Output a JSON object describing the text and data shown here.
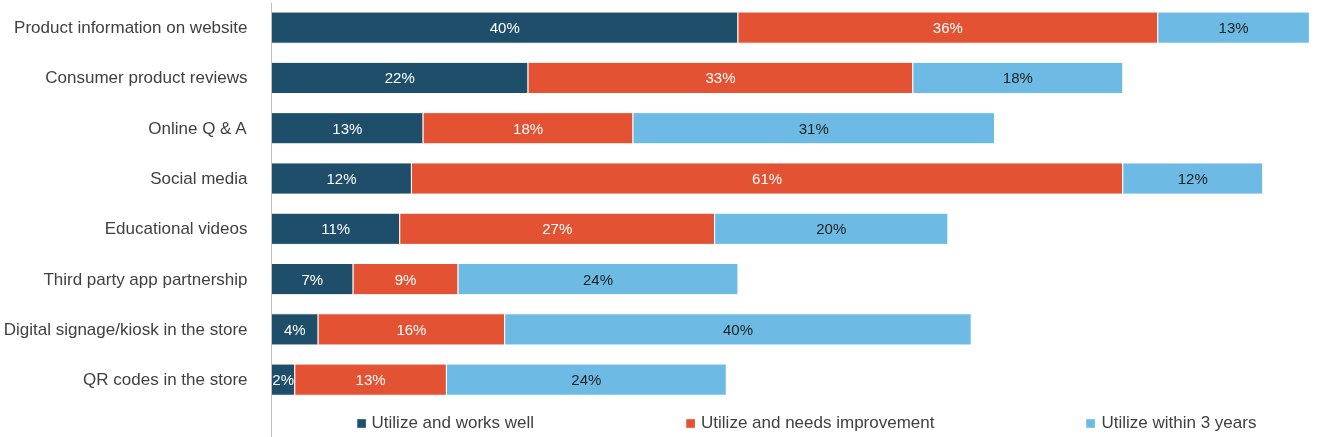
{
  "chart_data": {
    "type": "bar",
    "orientation": "horizontal",
    "stacked": true,
    "legend": "bottom",
    "grid": false,
    "categories": [
      "Product information on website",
      "Consumer product reviews",
      "Online Q & A",
      "Social media",
      "Educational videos",
      "Third party app partnership",
      "Digital signage/kiosk in the store",
      "QR codes in the store"
    ],
    "series": [
      {
        "name": "Utilize and works well",
        "color": "#1f4e6b",
        "values": [
          40,
          22,
          13,
          12,
          11,
          7,
          4,
          2
        ],
        "value_labels": [
          "40%",
          "22%",
          "13%",
          "12%",
          "11%",
          "7%",
          "4%",
          "2%"
        ]
      },
      {
        "name": "Utilize and needs improvement",
        "color": "#e35233",
        "values": [
          36,
          33,
          18,
          61,
          27,
          9,
          16,
          13
        ],
        "value_labels": [
          "36%",
          "33%",
          "18%",
          "61%",
          "27%",
          "9%",
          "16%",
          "13%"
        ]
      },
      {
        "name": "Utilize within 3 years",
        "color": "#6dbbe4",
        "values": [
          13,
          18,
          31,
          12,
          20,
          24,
          40,
          24
        ],
        "value_labels": [
          "13%",
          "18%",
          "31%",
          "12%",
          "20%",
          "24%",
          "40%",
          "24%"
        ]
      }
    ]
  }
}
